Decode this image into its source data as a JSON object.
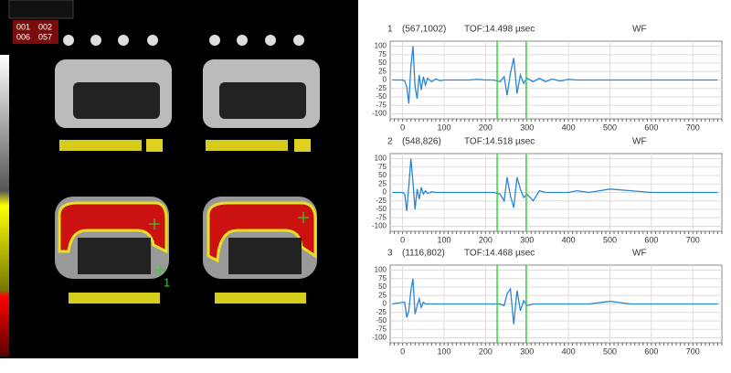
{
  "scan": {
    "labels": [
      "001",
      "002",
      "006",
      "057"
    ],
    "marker": "1"
  },
  "chart_data": [
    {
      "type": "line",
      "index": "1",
      "position": "(567,1002)",
      "tof": "TOF:14.498 µsec",
      "label": "WF",
      "x": [
        -25,
        0,
        5,
        10,
        15,
        20,
        25,
        30,
        35,
        40,
        45,
        50,
        55,
        60,
        70,
        80,
        90,
        100,
        120,
        140,
        160,
        180,
        200,
        220,
        235,
        245,
        252,
        260,
        268,
        276,
        284,
        292,
        300,
        315,
        330,
        345,
        360,
        380,
        400,
        420,
        450,
        500,
        550,
        600,
        650,
        700,
        760
      ],
      "values": [
        0,
        0,
        -3,
        -20,
        -70,
        40,
        100,
        -20,
        -55,
        15,
        -30,
        10,
        -15,
        5,
        -5,
        3,
        -2,
        0,
        0,
        0,
        0,
        2,
        0,
        0,
        -5,
        10,
        -45,
        20,
        65,
        -40,
        15,
        -10,
        5,
        -5,
        5,
        -5,
        3,
        -3,
        2,
        0,
        0,
        0,
        0,
        0,
        0,
        0,
        0
      ],
      "color": "#2a86d4",
      "vlines": [
        228,
        298
      ],
      "vline_color": "#33dd33",
      "xlim": [
        -30,
        770
      ],
      "xticks": [
        0,
        100,
        200,
        300,
        400,
        500,
        600,
        700
      ],
      "ylim": [
        -115,
        115
      ],
      "yticks": [
        -100,
        -75,
        -50,
        -25,
        0,
        25,
        50,
        75,
        100
      ],
      "grid": true
    },
    {
      "type": "line",
      "index": "2",
      "position": "(548,826)",
      "tof": "TOF:14.518 µsec",
      "label": "WF",
      "x": [
        -25,
        0,
        5,
        10,
        15,
        20,
        25,
        30,
        35,
        40,
        45,
        50,
        55,
        60,
        70,
        80,
        90,
        100,
        120,
        140,
        160,
        180,
        200,
        220,
        235,
        245,
        252,
        260,
        268,
        276,
        284,
        292,
        300,
        315,
        330,
        345,
        360,
        380,
        400,
        420,
        450,
        500,
        550,
        600,
        650,
        700,
        760
      ],
      "values": [
        0,
        0,
        -5,
        -55,
        20,
        100,
        30,
        -50,
        10,
        -20,
        15,
        -5,
        5,
        -3,
        2,
        0,
        0,
        0,
        0,
        0,
        0,
        0,
        0,
        0,
        -5,
        -25,
        45,
        -10,
        -45,
        45,
        10,
        -15,
        -5,
        -25,
        5,
        0,
        0,
        0,
        0,
        5,
        0,
        10,
        5,
        0,
        0,
        0,
        0
      ],
      "color": "#2a86d4",
      "vlines": [
        228,
        298
      ],
      "vline_color": "#33dd33",
      "xlim": [
        -30,
        770
      ],
      "xticks": [
        0,
        100,
        200,
        300,
        400,
        500,
        600,
        700
      ],
      "ylim": [
        -115,
        115
      ],
      "yticks": [
        -100,
        -75,
        -50,
        -25,
        0,
        25,
        50,
        75,
        100
      ],
      "grid": true
    },
    {
      "type": "line",
      "index": "3",
      "position": "(1116,802)",
      "tof": "TOF:14.468 µsec",
      "label": "WF",
      "x": [
        -25,
        0,
        5,
        10,
        15,
        20,
        25,
        30,
        35,
        40,
        45,
        50,
        55,
        60,
        70,
        80,
        90,
        100,
        120,
        140,
        160,
        180,
        200,
        220,
        235,
        245,
        252,
        260,
        268,
        276,
        284,
        292,
        300,
        315,
        330,
        345,
        360,
        380,
        400,
        420,
        450,
        500,
        550,
        600,
        650,
        700,
        760
      ],
      "values": [
        0,
        5,
        5,
        -40,
        -20,
        40,
        75,
        -30,
        -5,
        15,
        -10,
        5,
        0,
        0,
        0,
        0,
        0,
        0,
        0,
        0,
        0,
        0,
        0,
        0,
        0,
        -5,
        30,
        45,
        -60,
        40,
        -20,
        10,
        -5,
        0,
        0,
        0,
        0,
        0,
        0,
        0,
        0,
        8,
        0,
        0,
        0,
        0,
        0
      ],
      "color": "#2a86d4",
      "vlines": [
        228,
        298
      ],
      "vline_color": "#33dd33",
      "xlim": [
        -30,
        770
      ],
      "xticks": [
        0,
        100,
        200,
        300,
        400,
        500,
        600,
        700
      ],
      "ylim": [
        -115,
        115
      ],
      "yticks": [
        -100,
        -75,
        -50,
        -25,
        0,
        25,
        50,
        75,
        100
      ],
      "grid": true
    }
  ]
}
